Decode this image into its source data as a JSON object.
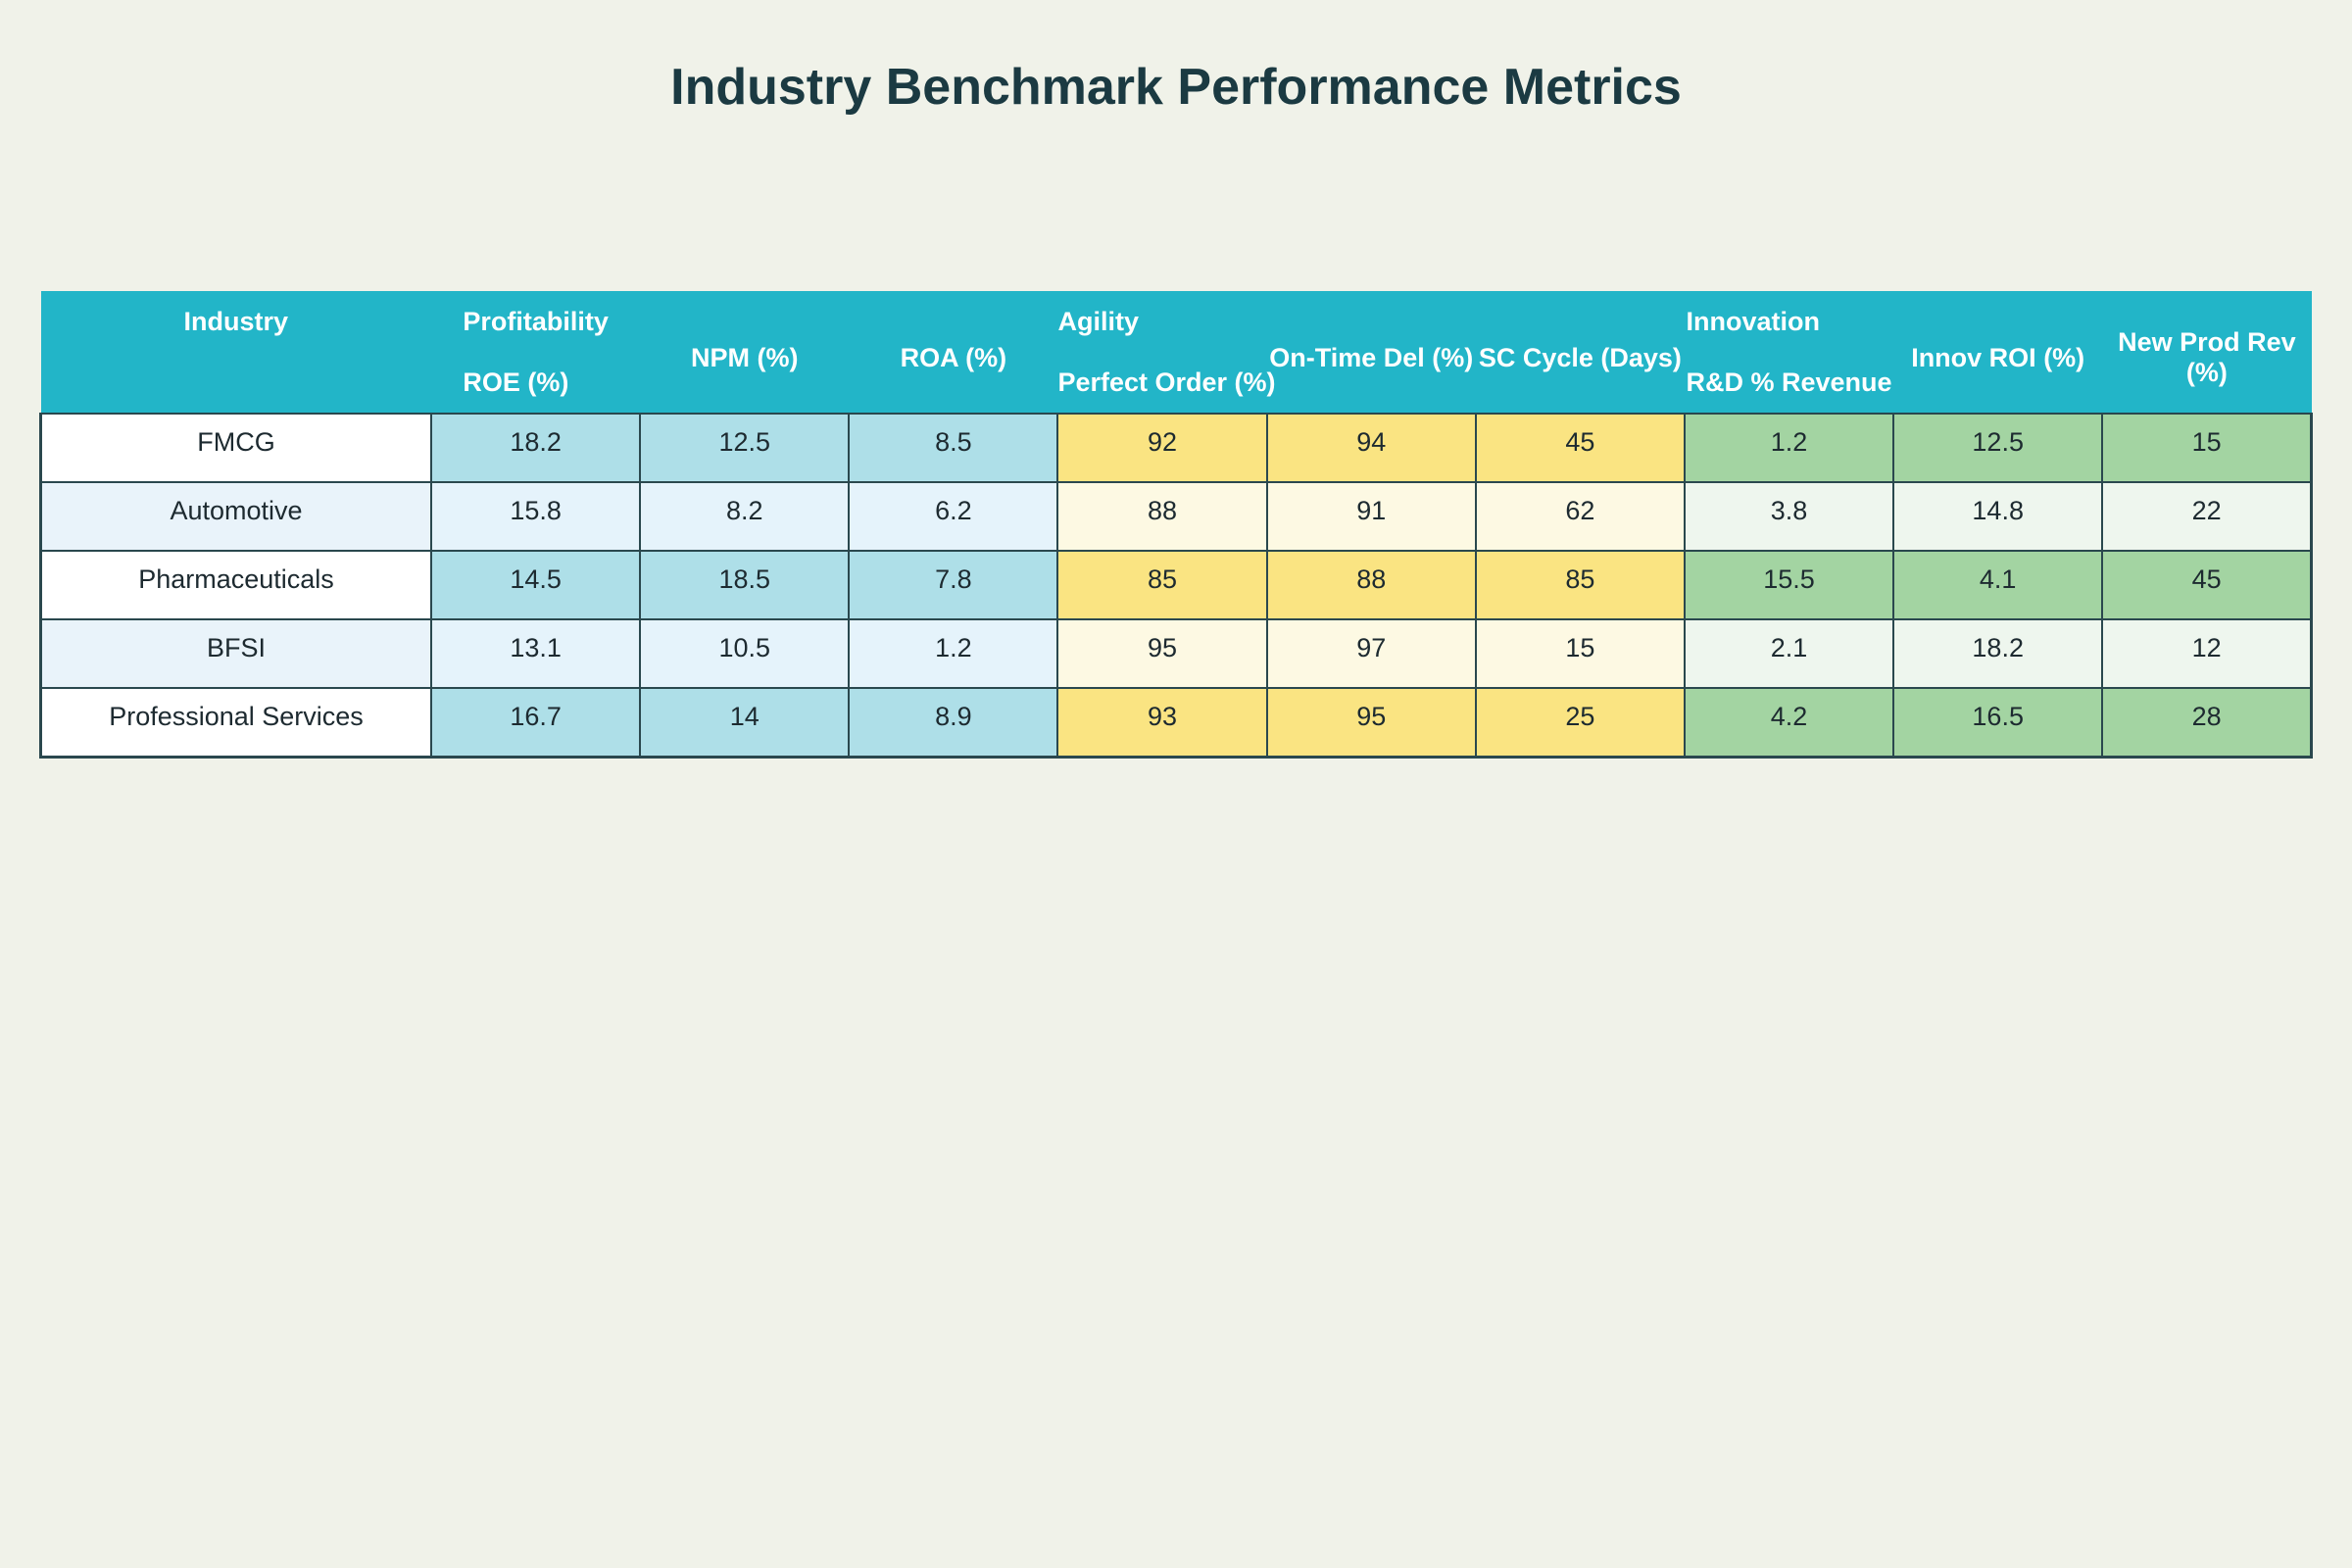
{
  "title": "Industry Benchmark Performance Metrics",
  "colors": {
    "page_background": "#f0f2e9",
    "header_background": "#22b5c8",
    "header_text": "#ffffff",
    "table_border": "#2a484e",
    "title_text": "#1b3a42",
    "cell_text": "#1d2a30",
    "industry_col_odd": "#ffffff",
    "industry_col_even": "#e9f3fa",
    "profitability_band_odd": "#aedfe8",
    "profitability_band_even": "#e5f3fb",
    "agility_band_odd": "#fae482",
    "agility_band_even": "#fdf9e3",
    "innovation_band_odd": "#a3d4a2",
    "innovation_band_even": "#eef6ee"
  },
  "header": {
    "cols": [
      {
        "line1": "Industry",
        "line2": ""
      },
      {
        "line1": "Profitability",
        "line2": "ROE (%)"
      },
      {
        "single": "NPM (%)"
      },
      {
        "single": "ROA (%)"
      },
      {
        "line1": "Agility",
        "line2": "Perfect Order (%)"
      },
      {
        "single": "On-Time Del (%)"
      },
      {
        "single": "SC Cycle (Days)"
      },
      {
        "line1": "Innovation",
        "line2": "R&D % Revenue"
      },
      {
        "single": "Innov ROI (%)"
      },
      {
        "single": "New Prod Rev (%)"
      }
    ]
  },
  "chart_data": {
    "type": "table",
    "title": "Industry Benchmark Performance Metrics",
    "column_groups": [
      {
        "name": "Profitability",
        "metrics": [
          "ROE (%)",
          "NPM (%)",
          "ROA (%)"
        ]
      },
      {
        "name": "Agility",
        "metrics": [
          "Perfect Order (%)",
          "On-Time Del (%)",
          "SC Cycle (Days)"
        ]
      },
      {
        "name": "Innovation",
        "metrics": [
          "R&D % Revenue",
          "Innov ROI (%)",
          "New Prod Rev (%)"
        ]
      }
    ],
    "columns": [
      "Industry",
      "ROE (%)",
      "NPM (%)",
      "ROA (%)",
      "Perfect Order (%)",
      "On-Time Del (%)",
      "SC Cycle (Days)",
      "R&D % Revenue",
      "Innov ROI (%)",
      "New Prod Rev (%)"
    ],
    "rows": [
      [
        "FMCG",
        "18.2",
        "12.5",
        "8.5",
        "92",
        "94",
        "45",
        "1.2",
        "12.5",
        "15"
      ],
      [
        "Automotive",
        "15.8",
        "8.2",
        "6.2",
        "88",
        "91",
        "62",
        "3.8",
        "14.8",
        "22"
      ],
      [
        "Pharmaceuticals",
        "14.5",
        "18.5",
        "7.8",
        "85",
        "88",
        "85",
        "15.5",
        "4.1",
        "45"
      ],
      [
        "BFSI",
        "13.1",
        "10.5",
        "1.2",
        "95",
        "97",
        "15",
        "2.1",
        "18.2",
        "12"
      ],
      [
        "Professional Services",
        "16.7",
        "14",
        "8.9",
        "93",
        "95",
        "25",
        "4.2",
        "16.5",
        "28"
      ]
    ]
  }
}
